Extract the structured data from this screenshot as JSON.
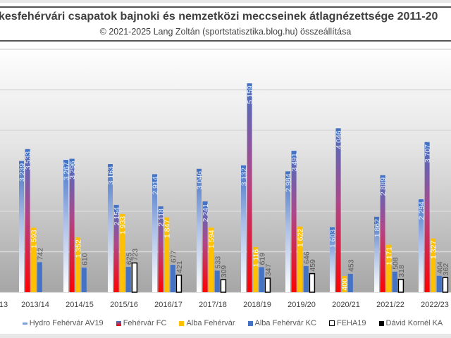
{
  "chart_data": {
    "type": "bar",
    "title": "kesfehérvári csapatok bajnoki és nemzetközi meccseinek átlagnézettsége 2011-20",
    "subtitle": "© 2021-2025 Lang Zoltán (sportstatisztika.blog.hu) összeállítása",
    "partial_left_category": "13",
    "categories": [
      "2013/14",
      "2014/15",
      "2015/16",
      "2016/17",
      "2017/18",
      "2018/19",
      "2019/20",
      "2020/21",
      "2021/22",
      "2022/23"
    ],
    "ylim": [
      0,
      6000
    ],
    "grid": true,
    "legend_position": "bottom",
    "series": [
      {
        "name": "Hydro Fehérvár AV19",
        "color": "#4472c4",
        "labels": [
          "3 239",
          "3 267",
          "3 163",
          "2 914",
          "3 046",
          "3 132",
          "2 984",
          "1 603",
          "1 862",
          "2 294"
        ],
        "values": [
          3239,
          3267,
          3163,
          2914,
          3046,
          3132,
          2984,
          1603,
          1862,
          2294
        ]
      },
      {
        "name": "Fehérvár FC",
        "color": "#ff0000",
        "labels": [
          "3 533",
          "3 296",
          "2 154",
          "2 118",
          "2 241",
          "5 159",
          "3 491",
          "4 046",
          "2 889",
          "3 707"
        ],
        "values": [
          3533,
          3296,
          2154,
          2118,
          2241,
          5159,
          3491,
          4046,
          2889,
          3707
        ]
      },
      {
        "name": "Alba Fehérvár",
        "color": "#ffc000",
        "labels": [
          "1 593",
          "1 352",
          "1 933",
          "1 847",
          "1 594",
          "1 116",
          "1 622",
          "400",
          "1 171",
          "1 327"
        ],
        "values": [
          1593,
          1352,
          1933,
          1847,
          1594,
          1116,
          1622,
          400,
          1171,
          1327
        ]
      },
      {
        "name": "Alba Fehérvár KC",
        "color": "#4472c4",
        "labels": [
          "742",
          "610",
          "625",
          "677",
          "533",
          "619",
          "646",
          "453",
          "508",
          "404"
        ],
        "values": [
          742,
          610,
          625,
          677,
          533,
          619,
          646,
          453,
          508,
          404
        ]
      },
      {
        "name": "FEHA19",
        "color": "#ffffff",
        "labels": [
          null,
          null,
          "723",
          "421",
          "309",
          "347",
          "459",
          null,
          "318",
          "362"
        ],
        "values": [
          null,
          null,
          723,
          421,
          309,
          347,
          459,
          null,
          318,
          362
        ]
      },
      {
        "name": "Dávid Kornél KA",
        "color": "#000000",
        "labels": [
          null,
          null,
          null,
          null,
          null,
          null,
          null,
          null,
          null,
          null
        ],
        "values": [
          null,
          null,
          null,
          null,
          null,
          null,
          null,
          null,
          null,
          null
        ]
      }
    ]
  }
}
